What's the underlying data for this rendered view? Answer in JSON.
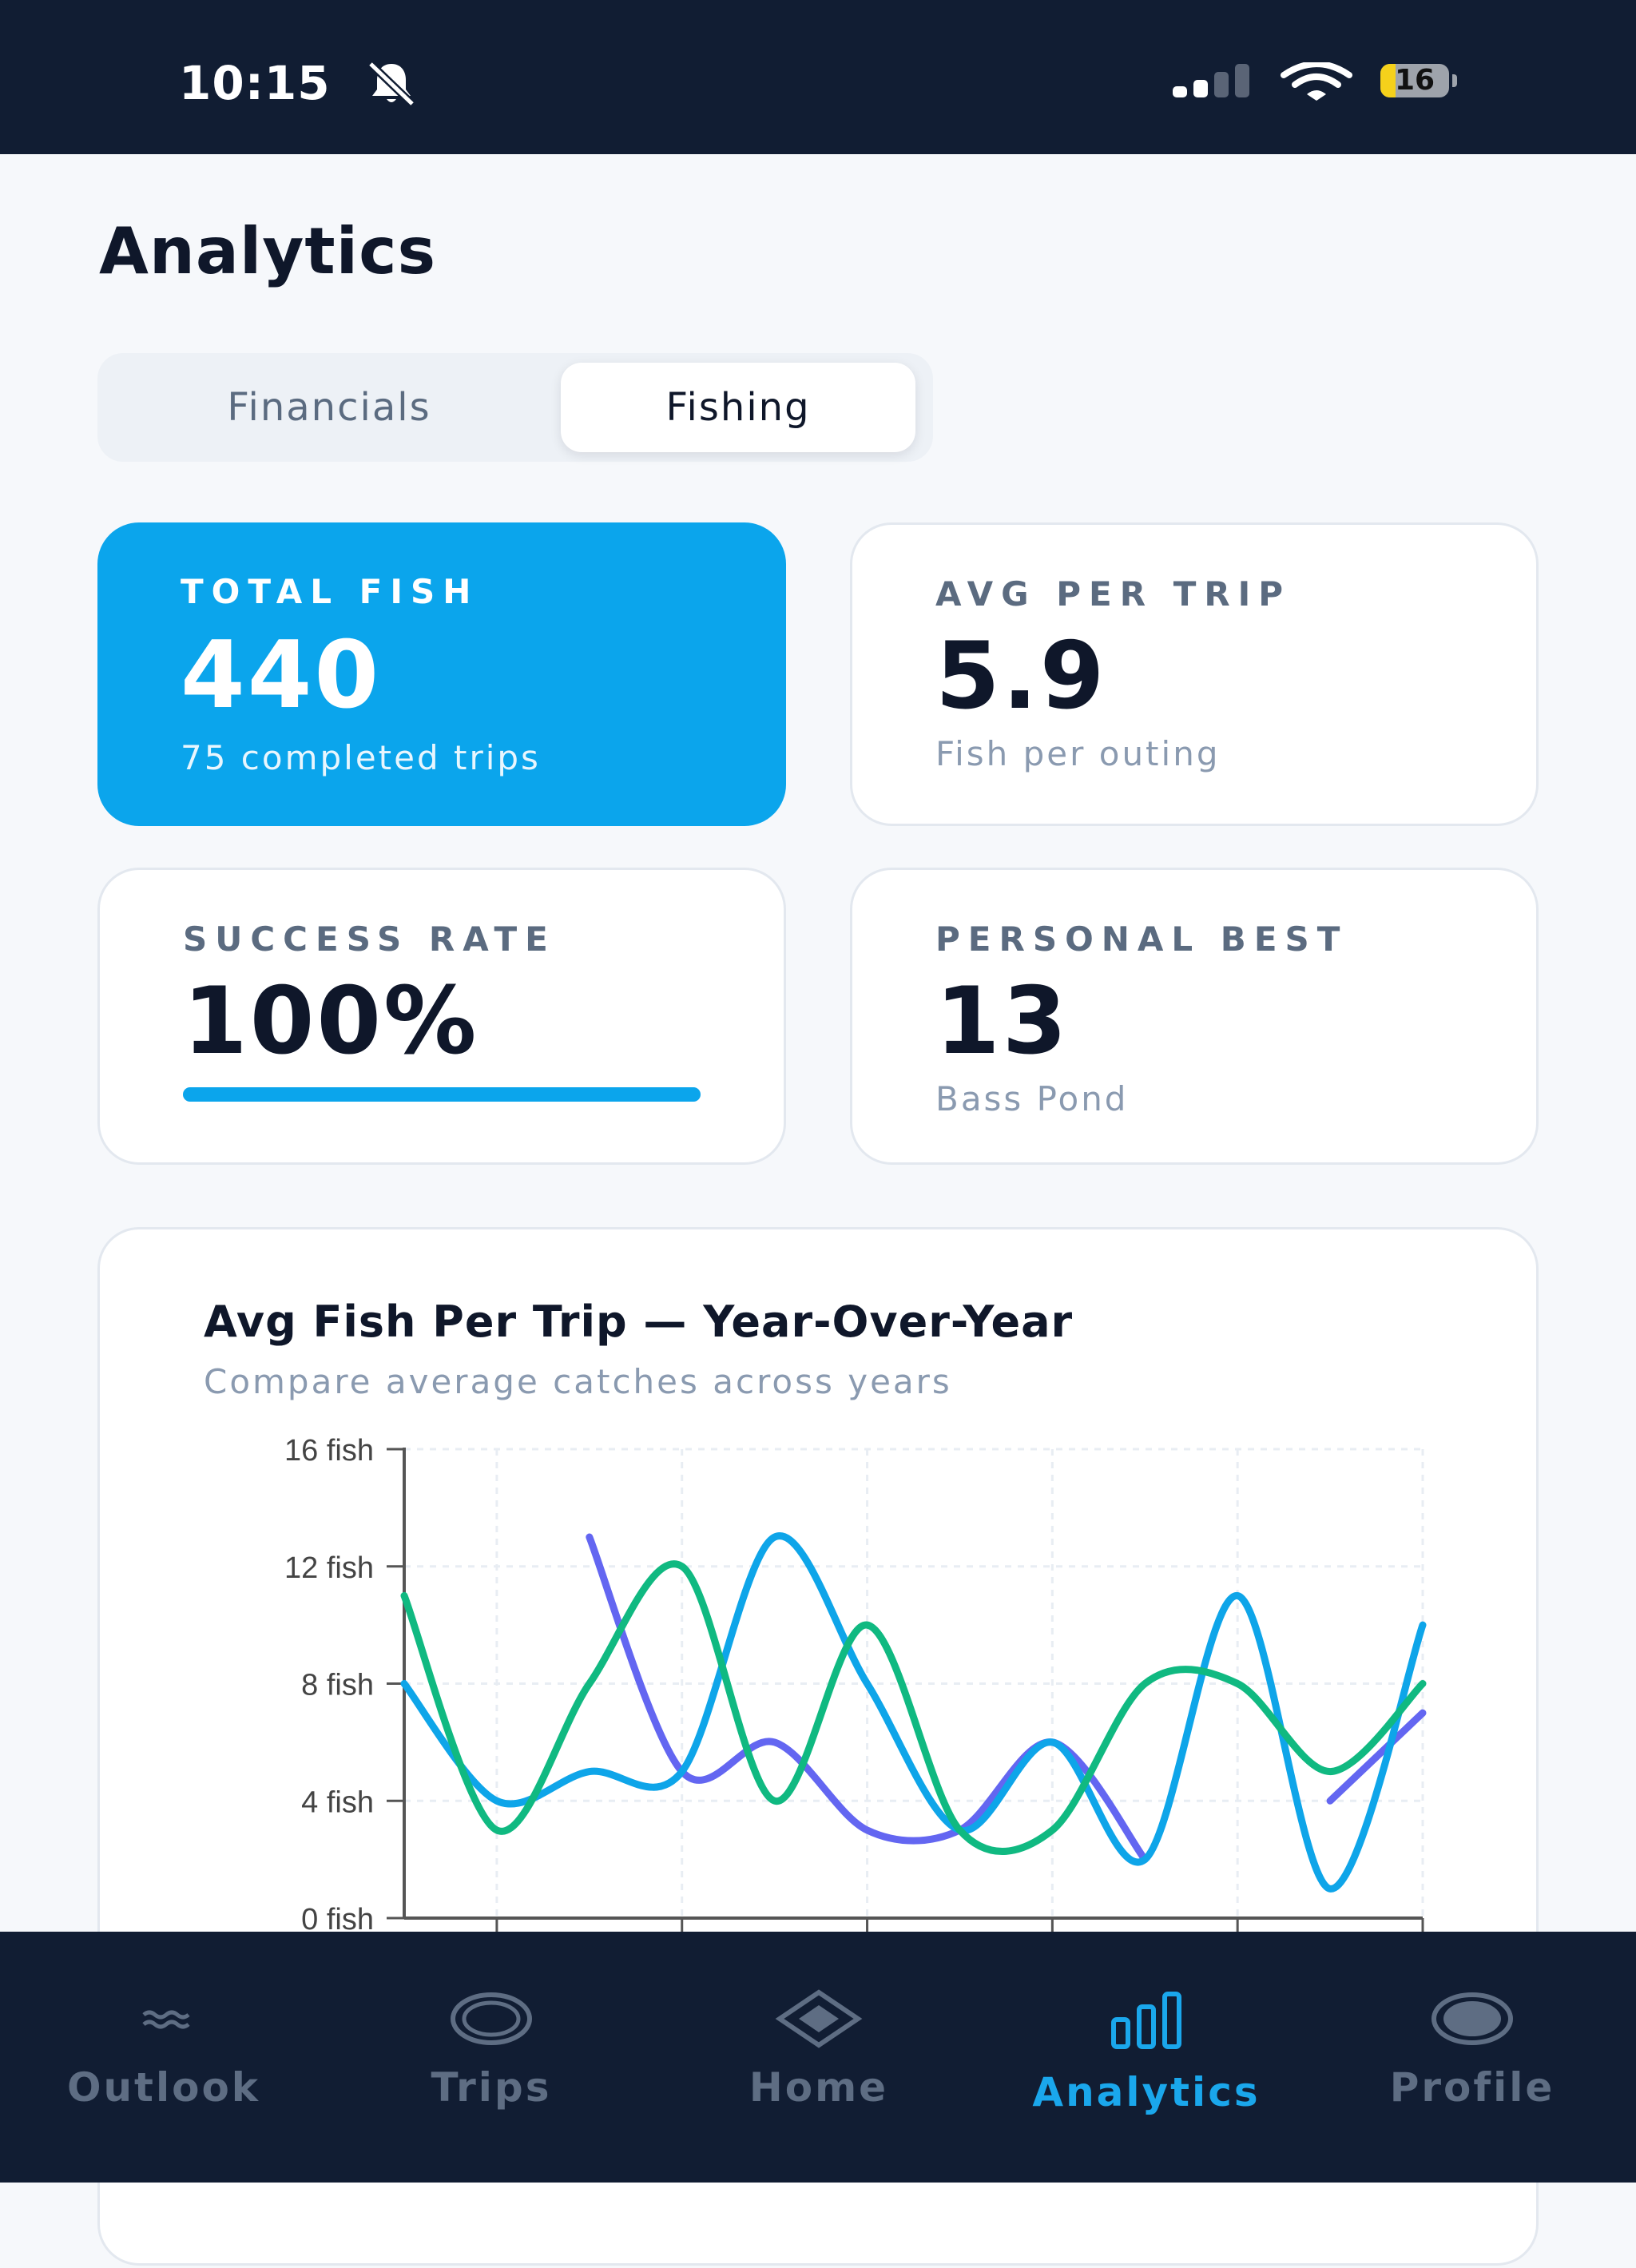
{
  "status_bar": {
    "time": "10:15",
    "battery_level": "16",
    "icons": [
      "bell-slash-icon",
      "signal-icon",
      "wifi-icon",
      "battery-icon"
    ]
  },
  "page": {
    "title": "Analytics"
  },
  "segments": {
    "items": [
      "Financials",
      "Fishing"
    ],
    "selected": "Fishing"
  },
  "stats": {
    "total_fish": {
      "label": "TOTAL FISH",
      "value": "440",
      "sub": "75 completed trips"
    },
    "avg_per_trip": {
      "label": "AVG PER TRIP",
      "value": "5.9",
      "sub": "Fish per outing"
    },
    "success_rate": {
      "label": "SUCCESS RATE",
      "value": "100%",
      "progress": 1.0
    },
    "personal_best": {
      "label": "PERSONAL BEST",
      "value": "13",
      "sub": "Bass Pond"
    }
  },
  "chart_data": {
    "type": "line",
    "title": "Avg Fish Per Trip — Year-Over-Year",
    "subtitle": "Compare average catches across years",
    "yticks": [
      "0 fish",
      "4 fish",
      "8 fish",
      "12 fish",
      "16 fish"
    ],
    "ylim": [
      0,
      16
    ],
    "xlim": [
      0,
      11
    ],
    "grid": true,
    "series": [
      {
        "color": "#6366f1",
        "points": [
          [
            2,
            13
          ],
          [
            3,
            5
          ],
          [
            4,
            6
          ],
          [
            5,
            3
          ],
          [
            6,
            3
          ],
          [
            7,
            6
          ],
          [
            8,
            2
          ],
          [
            10,
            4
          ],
          [
            11,
            7
          ]
        ]
      },
      {
        "color": "#0ea5e9",
        "points": [
          [
            0,
            8
          ],
          [
            1,
            4
          ],
          [
            2,
            5
          ],
          [
            3,
            5
          ],
          [
            4,
            13
          ],
          [
            5,
            8
          ],
          [
            6,
            3
          ],
          [
            7,
            6
          ],
          [
            8,
            2
          ],
          [
            9,
            11
          ],
          [
            10,
            1
          ],
          [
            11,
            10
          ]
        ]
      },
      {
        "color": "#10b981",
        "points": [
          [
            0,
            11
          ],
          [
            1,
            3
          ],
          [
            2,
            8
          ],
          [
            3,
            12
          ],
          [
            4,
            4
          ],
          [
            5,
            10
          ],
          [
            6,
            3
          ],
          [
            7,
            3
          ],
          [
            8,
            8
          ],
          [
            9,
            8
          ],
          [
            10,
            5
          ],
          [
            11,
            8
          ]
        ]
      }
    ]
  },
  "nav": {
    "items": [
      {
        "label": "Outlook",
        "icon": "waves-icon"
      },
      {
        "label": "Trips",
        "icon": "ring-icon"
      },
      {
        "label": "Home",
        "icon": "diamond-icon"
      },
      {
        "label": "Analytics",
        "icon": "bar-chart-icon"
      },
      {
        "label": "Profile",
        "icon": "profile-icon"
      }
    ],
    "active": "Analytics"
  }
}
